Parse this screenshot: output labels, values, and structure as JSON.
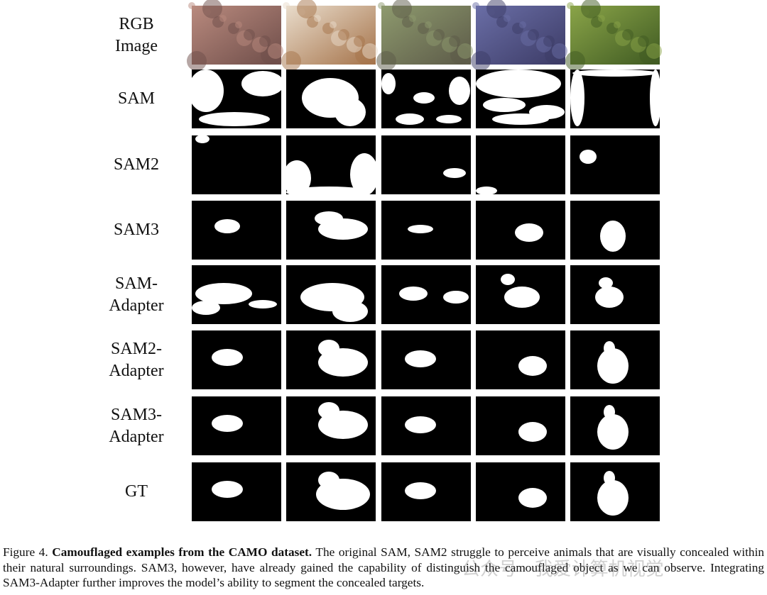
{
  "figure": {
    "row_labels": [
      "RGB Image",
      "SAM",
      "SAM2",
      "SAM3",
      "SAM-Adapter",
      "SAM2-Adapter",
      "SAM3-Adapter",
      "GT"
    ]
  },
  "caption": {
    "label": "Figure 4.",
    "bold": "Camouflaged examples from the CAMO dataset.",
    "text": "The original SAM, SAM2 struggle to perceive animals that are visually concealed within their natural surroundings. SAM3, however, have already gained the capability of distinguish the camouflaged object as we can observe. Integrating SAM3-Adapter further improves the model’s ability to segment the concealed targets."
  },
  "watermark": "公众号 · 我爱计算机视觉"
}
